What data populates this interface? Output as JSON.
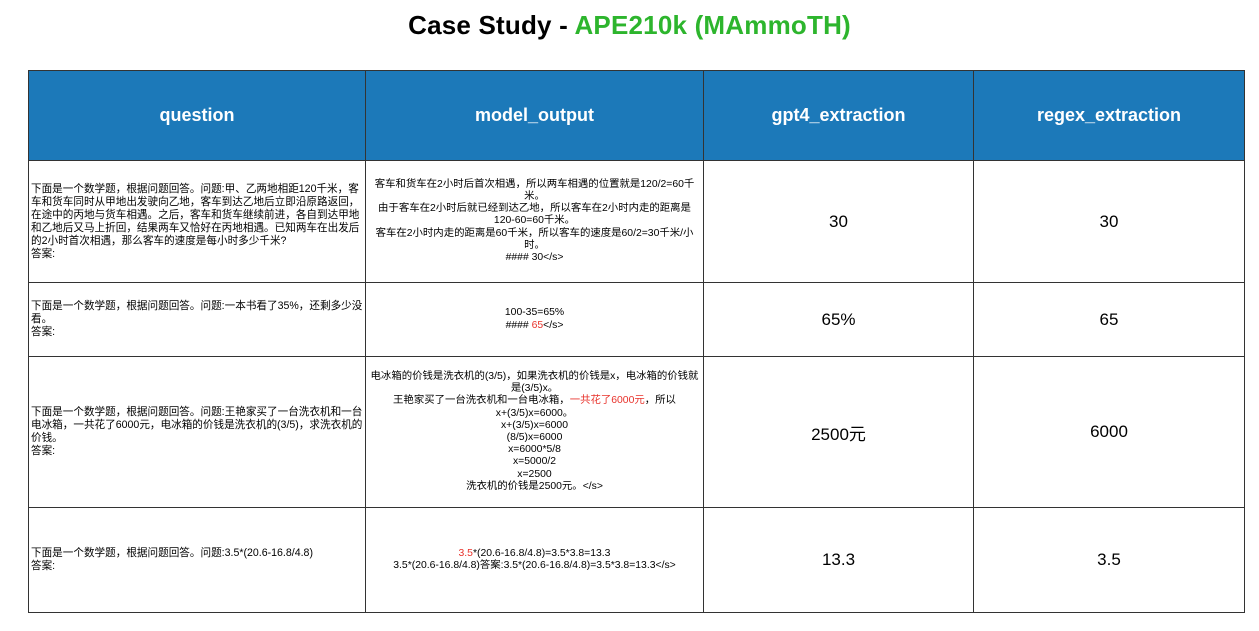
{
  "title": {
    "prefix": "Case Study - ",
    "highlight": "APE210k (MAmmoTH)"
  },
  "table": {
    "headers": [
      "question",
      "model_output",
      "gpt4_extraction",
      "regex_extraction"
    ],
    "rows": [
      {
        "question": [
          "下面是一个数学题，根据问题回答。问题:甲、乙两地相距120千米，客车和货车同时从甲地出发驶向乙地，客车到达乙地后立即沿原路返回，在途中的丙地与货车相遇。之后，客车和货车继续前进，各自到达甲地和乙地后又马上折回，结果两车又恰好在丙地相遇。已知两车在出发后的2小时首次相遇，那么客车的速度是每小时多少千米?",
          "答案:"
        ],
        "model_output": [
          {
            "text": "客车和货车在2小时后首次相遇，所以两车相遇的位置就是120/2=60千米。"
          },
          {
            "text": "由于客车在2小时后就已经到达乙地，所以客车在2小时内走的距离是120-60=60千米。"
          },
          {
            "text": "客车在2小时内走的距离是60千米，所以客车的速度是60/2=30千米/小时。"
          },
          {
            "text": "#### 30</s>"
          }
        ],
        "gpt4_extraction": "30",
        "regex_extraction": "30"
      },
      {
        "question": [
          "下面是一个数学题，根据问题回答。问题:一本书看了35%，还剩多少没看。",
          "答案:"
        ],
        "model_output": [
          {
            "text": "100-35=65%"
          },
          {
            "pre": "#### ",
            "red": "65",
            "post": "</s>"
          }
        ],
        "gpt4_extraction": "65%",
        "regex_extraction": "65"
      },
      {
        "question": [
          "下面是一个数学题，根据问题回答。问题:王艳家买了一台洗衣机和一台电冰箱，一共花了6000元，电冰箱的价钱是洗衣机的(3/5)，求洗衣机的价钱。",
          "答案:"
        ],
        "model_output": [
          {
            "text": "电冰箱的价钱是洗衣机的(3/5)，如果洗衣机的价钱是x，电冰箱的价钱就是(3/5)x。"
          },
          {
            "pre": "王艳家买了一台洗衣机和一台电冰箱，",
            "red": "一共花了6000元",
            "post": "，所以"
          },
          {
            "text": "x+(3/5)x=6000。"
          },
          {
            "text": "x+(3/5)x=6000"
          },
          {
            "text": "(8/5)x=6000"
          },
          {
            "text": "x=6000*5/8"
          },
          {
            "text": "x=5000/2"
          },
          {
            "text": "x=2500"
          },
          {
            "text": "洗衣机的价钱是2500元。</s>"
          }
        ],
        "gpt4_extraction": "2500元",
        "regex_extraction": "6000"
      },
      {
        "question": [
          "下面是一个数学题，根据问题回答。问题:3.5*(20.6-16.8/4.8)",
          "答案:"
        ],
        "model_output": [
          {
            "pre": "",
            "red": "3.5",
            "post": "*(20.6-16.8/4.8)=3.5*3.8=13.3"
          },
          {
            "text": "3.5*(20.6-16.8/4.8)答案:3.5*(20.6-16.8/4.8)=3.5*3.8=13.3</s>"
          }
        ],
        "gpt4_extraction": "13.3",
        "regex_extraction": "3.5"
      }
    ]
  }
}
